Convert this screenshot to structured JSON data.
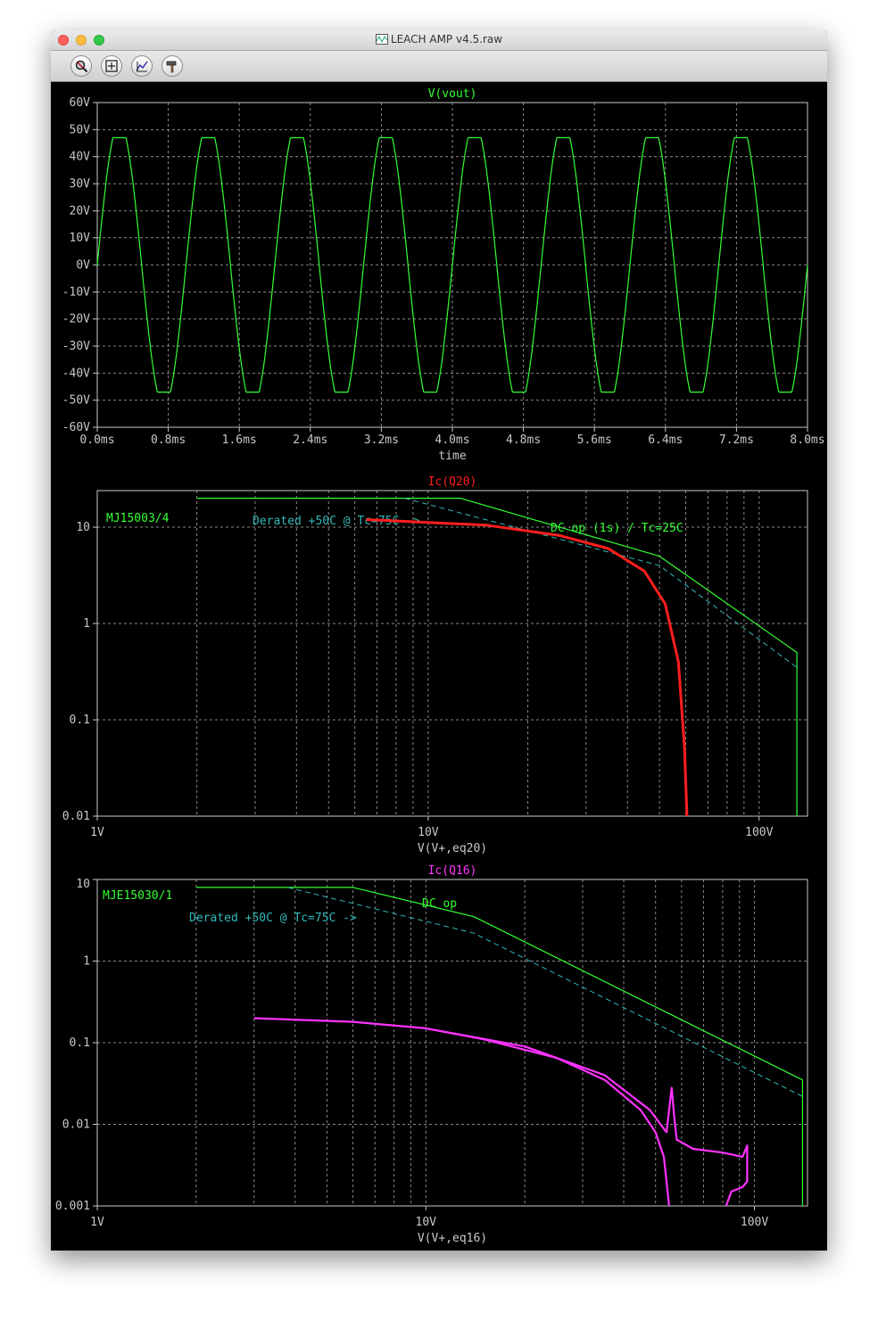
{
  "window": {
    "title": "LEACH AMP v4.5.raw"
  },
  "toolbar": {
    "buttons": [
      {
        "icon": "zoom-icon"
      },
      {
        "icon": "fit-icon"
      },
      {
        "icon": "cursor-icon"
      },
      {
        "icon": "hammer-icon"
      }
    ]
  },
  "colors": {
    "green": "#33ff33",
    "red": "#ff1e1e",
    "magenta": "#ff33ff",
    "cyan": "#33b8b8",
    "axis": "#c8c8c8",
    "grid": "#888888"
  },
  "chart_data": [
    {
      "type": "line",
      "title": "V(vout)",
      "xlabel": "time",
      "ylabel": "",
      "xlim": [
        0,
        8
      ],
      "ylim": [
        -60,
        60
      ],
      "xticks": [
        "0.0ms",
        "0.8ms",
        "1.6ms",
        "2.4ms",
        "3.2ms",
        "4.0ms",
        "4.8ms",
        "5.6ms",
        "6.4ms",
        "7.2ms",
        "8.0ms"
      ],
      "yticks": [
        "60V",
        "50V",
        "40V",
        "30V",
        "20V",
        "10V",
        "0V",
        "-10V",
        "-20V",
        "-30V",
        "-40V",
        "-50V",
        "-60V"
      ],
      "series": [
        {
          "name": "V(vout)",
          "function": "sine",
          "amplitude_v": 52.5,
          "clip_v": 47,
          "frequency_hz": 1000,
          "x_unit": "ms"
        }
      ]
    },
    {
      "type": "line",
      "title": "Ic(Q20)",
      "xlabel": "V(V+,eq20)",
      "ylabel": "",
      "scale": "log-log",
      "xlim": [
        1,
        140
      ],
      "ylim": [
        0.01,
        24
      ],
      "xticks": [
        "1V",
        "10V",
        "100V"
      ],
      "yticks": [
        "10",
        "1",
        "0.1",
        "0.01"
      ],
      "annotations": [
        "MJ15003/4",
        "Derated +50C @ Tc=75C ->",
        "DC op (1s) / Tc=25C"
      ],
      "series": [
        {
          "name": "DC op (1s) / Tc=25C",
          "x": [
            2,
            12.5,
            50,
            130,
            130
          ],
          "y": [
            20,
            20,
            5,
            0.5,
            0.01
          ]
        },
        {
          "name": "Derated +50C @ Tc=75C",
          "x": [
            8.5,
            50,
            130
          ],
          "y": [
            20,
            4,
            0.35
          ]
        },
        {
          "name": "Ic(Q20)",
          "x": [
            6.5,
            15,
            25,
            35,
            45,
            52,
            57,
            59.5,
            60.5
          ],
          "y": [
            12,
            10.5,
            8.2,
            6,
            3.5,
            1.6,
            0.4,
            0.05,
            0.01
          ]
        }
      ]
    },
    {
      "type": "line",
      "title": "Ic(Q16)",
      "xlabel": "V(V+,eq16)",
      "ylabel": "",
      "scale": "log-log",
      "xlim": [
        1,
        145
      ],
      "ylim": [
        0.001,
        10
      ],
      "xticks": [
        "1V",
        "10V",
        "100V"
      ],
      "yticks": [
        "10",
        "1",
        "0.1",
        "0.01",
        "0.001"
      ],
      "annotations": [
        "MJE15030/1",
        "Derated +50C @ Tc=75C ->",
        "DC op"
      ],
      "series": [
        {
          "name": "DC op",
          "x": [
            2,
            6,
            14,
            140,
            140
          ],
          "y": [
            8,
            8,
            3.5,
            0.035,
            0.001
          ]
        },
        {
          "name": "Derated +50C @ Tc=75C",
          "x": [
            3.8,
            14,
            140
          ],
          "y": [
            8,
            2.2,
            0.022
          ]
        },
        {
          "name": "Ic(Q16) branch 1",
          "x": [
            3,
            6,
            10,
            15,
            25,
            35,
            45,
            50,
            53,
            55
          ],
          "y": [
            0.2,
            0.18,
            0.15,
            0.11,
            0.065,
            0.035,
            0.015,
            0.008,
            0.004,
            0.001
          ]
        },
        {
          "name": "Ic(Q16) branch 2",
          "x": [
            10,
            20,
            35,
            48,
            54,
            55,
            56,
            57,
            58,
            65,
            80,
            92,
            95,
            95,
            92,
            85,
            82
          ],
          "y": [
            0.15,
            0.09,
            0.04,
            0.015,
            0.008,
            0.015,
            0.028,
            0.012,
            0.0065,
            0.005,
            0.0045,
            0.004,
            0.0055,
            0.002,
            0.0017,
            0.0015,
            0.001
          ]
        }
      ]
    }
  ]
}
